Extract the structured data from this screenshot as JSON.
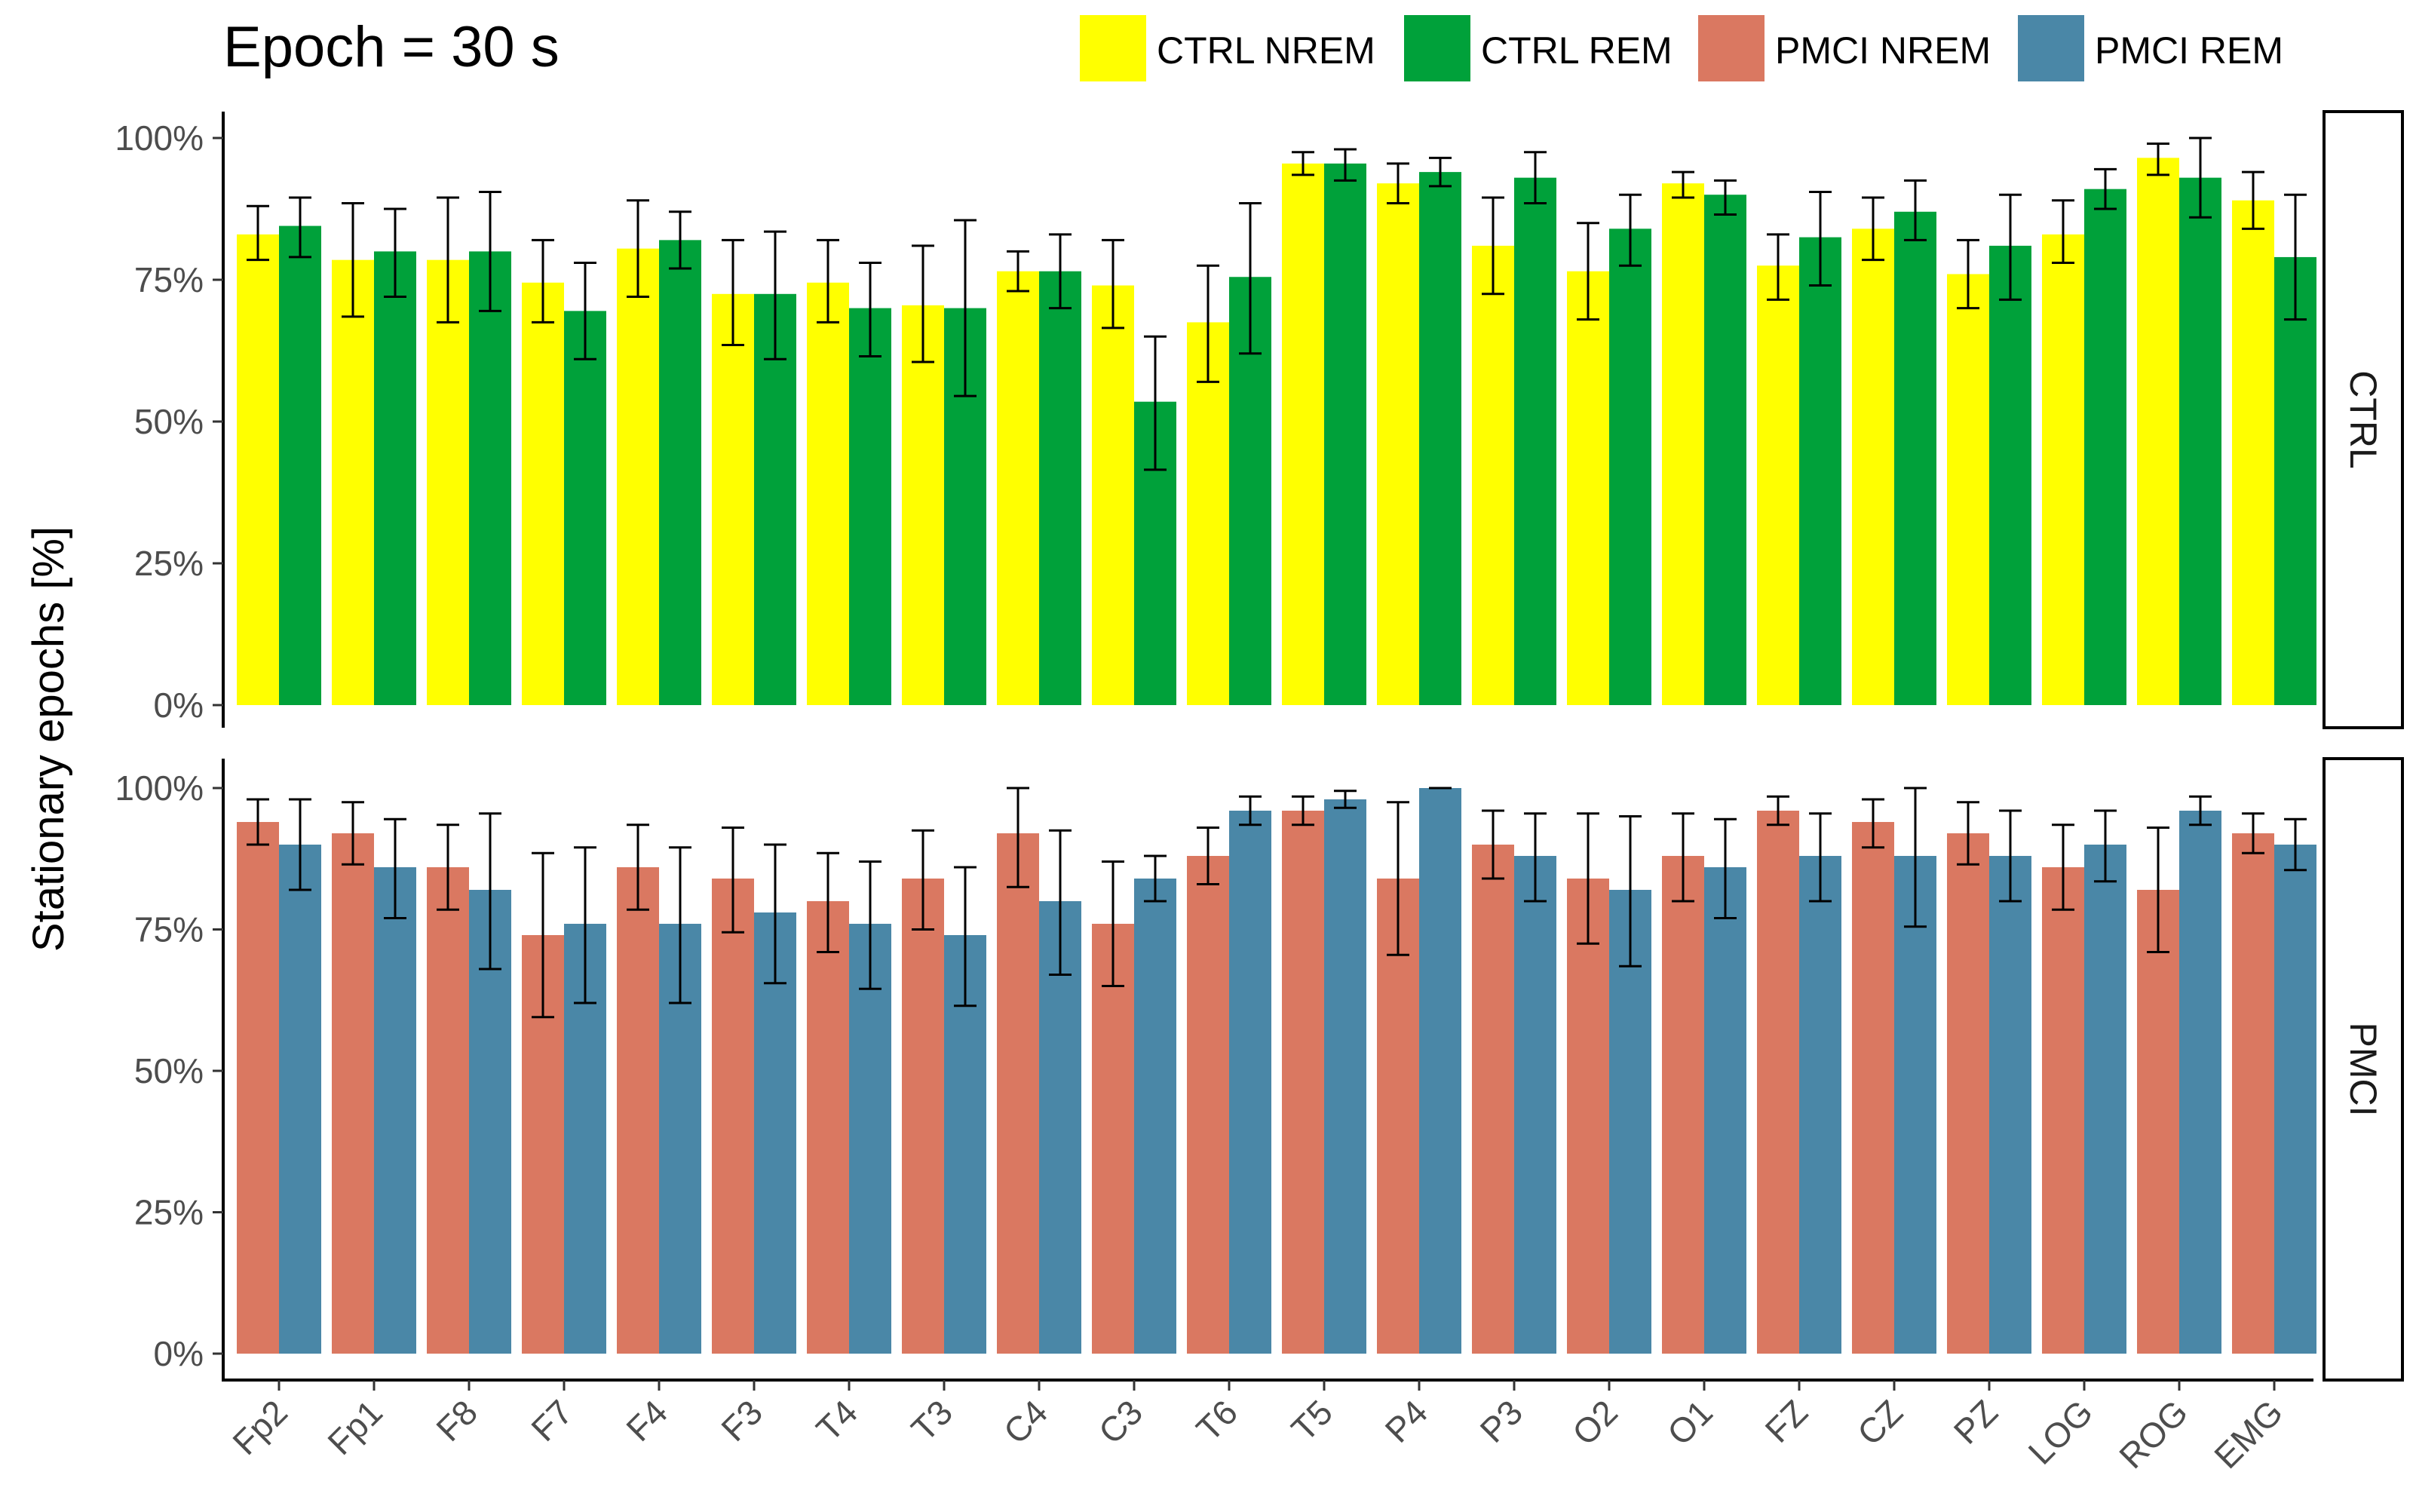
{
  "chart_data": {
    "type": "bar",
    "title": "Epoch = 30 s",
    "ylabel": "Stationary epochs [%]",
    "xlabel": "",
    "ylim": [
      0,
      100
    ],
    "yticks": [
      0,
      25,
      50,
      75,
      100
    ],
    "ytick_labels": [
      "0%",
      "25%",
      "50%",
      "75%",
      "100%"
    ],
    "categories": [
      "Fp2",
      "Fp1",
      "F8",
      "F7",
      "F4",
      "F3",
      "T4",
      "T3",
      "C4",
      "C3",
      "T6",
      "T5",
      "P4",
      "P3",
      "O2",
      "O1",
      "FZ",
      "CZ",
      "PZ",
      "LOG",
      "ROG",
      "EMG"
    ],
    "legend": {
      "position": "top-right",
      "entries": [
        {
          "label": "CTRL NREM",
          "color": "#FFFF00"
        },
        {
          "label": "CTRL REM",
          "color": "#00A13A"
        },
        {
          "label": "PMCI NREM",
          "color": "#DA7861"
        },
        {
          "label": "PMCI REM",
          "color": "#4A87A7"
        }
      ]
    },
    "panels": [
      {
        "strip": "CTRL",
        "series": [
          {
            "name": "CTRL NREM",
            "color": "#FFFF00",
            "values": [
              83,
              78.5,
              78.5,
              74.5,
              80.5,
              72.5,
              74.5,
              70.5,
              76.5,
              74,
              67.5,
              95.5,
              92,
              81,
              76.5,
              92,
              77.5,
              84,
              76,
              83,
              96.5,
              89
            ],
            "err_low": [
              78.5,
              68.5,
              67.5,
              67.5,
              72,
              63.5,
              67.5,
              60.5,
              73,
              66.5,
              57,
              93.5,
              88.5,
              72.5,
              68,
              89.5,
              71.5,
              78.5,
              70,
              78,
              93.5,
              84
            ],
            "err_high": [
              88,
              88.5,
              89.5,
              82,
              89,
              82,
              82,
              81,
              80,
              82,
              77.5,
              97.5,
              95.5,
              89.5,
              85,
              94,
              83,
              89.5,
              82,
              89,
              99,
              94
            ]
          },
          {
            "name": "CTRL REM",
            "color": "#00A13A",
            "values": [
              84.5,
              80,
              80,
              69.5,
              82,
              72.5,
              70,
              70,
              76.5,
              53.5,
              75.5,
              95.5,
              94,
              93,
              84,
              90,
              82.5,
              87,
              81,
              91,
              93,
              79
            ],
            "err_low": [
              79,
              72,
              69.5,
              61,
              77,
              61,
              61.5,
              54.5,
              70,
              41.5,
              62,
              92.5,
              91.5,
              88.5,
              77.5,
              86.5,
              74,
              82,
              71.5,
              87.5,
              86,
              68
            ],
            "err_high": [
              89.5,
              87.5,
              90.5,
              78,
              87,
              83.5,
              78,
              85.5,
              83,
              65,
              88.5,
              98,
              96.5,
              97.5,
              90,
              92.5,
              90.5,
              92.5,
              90,
              94.5,
              100,
              90
            ]
          }
        ]
      },
      {
        "strip": "PMCI",
        "series": [
          {
            "name": "PMCI NREM",
            "color": "#DA7861",
            "values": [
              94,
              92,
              86,
              74,
              86,
              84,
              80,
              84,
              92,
              76,
              88,
              96,
              84,
              90,
              84,
              88,
              96,
              94,
              92,
              86,
              82,
              92
            ],
            "err_low": [
              90,
              86.5,
              78.5,
              59.5,
              78.5,
              74.5,
              71,
              75,
              82.5,
              65,
              83,
              93.5,
              70.5,
              84,
              72.5,
              80,
              93.5,
              89.5,
              86.5,
              78.5,
              71,
              88.5
            ],
            "err_high": [
              98,
              97.5,
              93.5,
              88.5,
              93.5,
              93,
              88.5,
              92.5,
              100,
              87,
              93,
              98.5,
              97.5,
              96,
              95.5,
              95.5,
              98.5,
              98,
              97.5,
              93.5,
              93,
              95.5
            ]
          },
          {
            "name": "PMCI REM",
            "color": "#4A87A7",
            "values": [
              90,
              86,
              82,
              76,
              76,
              78,
              76,
              74,
              80,
              84,
              96,
              98,
              100,
              88,
              82,
              86,
              88,
              88,
              88,
              90,
              96,
              90
            ],
            "err_low": [
              82,
              77,
              68,
              62,
              62,
              65.5,
              64.5,
              61.5,
              67,
              80,
              93.5,
              96.5,
              100,
              80,
              68.5,
              77,
              80,
              75.5,
              80,
              83.5,
              93.5,
              85.5
            ],
            "err_high": [
              98,
              94.5,
              95.5,
              89.5,
              89.5,
              90,
              87,
              86,
              92.5,
              88,
              98.5,
              99.5,
              100,
              95.5,
              95,
              94.5,
              95.5,
              100,
              96,
              96,
              98.5,
              94.5
            ]
          }
        ]
      }
    ]
  }
}
